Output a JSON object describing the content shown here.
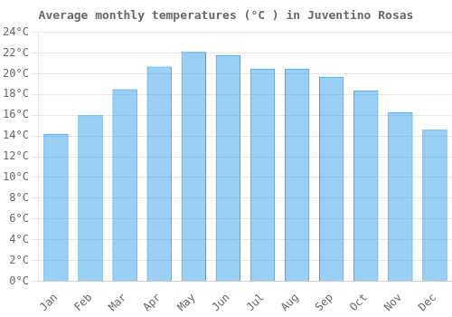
{
  "chart_data": {
    "type": "bar",
    "title": "Average monthly temperatures (°C ) in Juventino Rosas",
    "categories": [
      "Jan",
      "Feb",
      "Mar",
      "Apr",
      "May",
      "Jun",
      "Jul",
      "Aug",
      "Sep",
      "Oct",
      "Nov",
      "Dec"
    ],
    "values": [
      14.2,
      16.0,
      18.5,
      20.7,
      22.1,
      21.8,
      20.5,
      20.5,
      19.7,
      18.4,
      16.3,
      14.6
    ],
    "ylim": [
      0,
      24
    ],
    "yticks": [
      {
        "value": 0,
        "label": "0°C"
      },
      {
        "value": 2,
        "label": "2°C"
      },
      {
        "value": 4,
        "label": "4°C"
      },
      {
        "value": 6,
        "label": "6°C"
      },
      {
        "value": 8,
        "label": "8°C"
      },
      {
        "value": 10,
        "label": "10°C"
      },
      {
        "value": 12,
        "label": "12°C"
      },
      {
        "value": 14,
        "label": "14°C"
      },
      {
        "value": 16,
        "label": "16°C"
      },
      {
        "value": 18,
        "label": "18°C"
      },
      {
        "value": 20,
        "label": "20°C"
      },
      {
        "value": 22,
        "label": "22°C"
      },
      {
        "value": 24,
        "label": "24°C"
      }
    ],
    "grid": true
  }
}
